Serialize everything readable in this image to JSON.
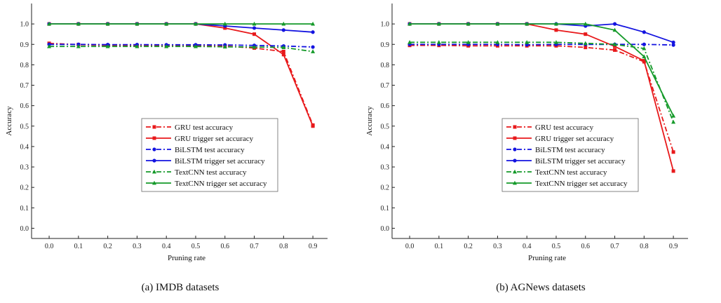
{
  "chart_data": [
    {
      "type": "line",
      "caption": "(a) IMDB datasets",
      "xlabel": "Pruning rate",
      "ylabel": "Accuracy",
      "x": [
        0.0,
        0.1,
        0.2,
        0.3,
        0.4,
        0.5,
        0.6,
        0.7,
        0.8,
        0.9
      ],
      "x_tick_labels": [
        "0.0",
        "0.1",
        "0.2",
        "0.3",
        "0.4",
        "0.5",
        "0.6",
        "0.7",
        "0.8",
        "0.9"
      ],
      "y_tick_labels": [
        "0.0",
        "0.1",
        "0.2",
        "0.3",
        "0.4",
        "0.5",
        "0.6",
        "0.7",
        "0.8",
        "0.9",
        "1.0"
      ],
      "xlim": [
        -0.06,
        0.95
      ],
      "ylim": [
        -0.05,
        1.1
      ],
      "legend_position": "center-right",
      "series": [
        {
          "name": "GRU test accuracy",
          "color": "#e8191b",
          "dash": true,
          "marker": "square",
          "values": [
            0.905,
            0.899,
            0.895,
            0.893,
            0.893,
            0.893,
            0.892,
            0.882,
            0.865,
            0.505
          ]
        },
        {
          "name": "GRU trigger set accuracy",
          "color": "#e8191b",
          "dash": false,
          "marker": "square",
          "values": [
            1.0,
            1.0,
            1.0,
            1.0,
            1.0,
            1.0,
            0.98,
            0.95,
            0.85,
            0.5
          ]
        },
        {
          "name": "BiLSTM test accuracy",
          "color": "#1414e0",
          "dash": true,
          "marker": "circle",
          "values": [
            0.9,
            0.9,
            0.899,
            0.899,
            0.898,
            0.898,
            0.897,
            0.895,
            0.892,
            0.887
          ]
        },
        {
          "name": "BiLSTM trigger set accuracy",
          "color": "#1414e0",
          "dash": false,
          "marker": "circle",
          "values": [
            1.0,
            1.0,
            1.0,
            1.0,
            1.0,
            1.0,
            0.99,
            0.98,
            0.97,
            0.96
          ]
        },
        {
          "name": "TextCNN test accuracy",
          "color": "#159a2a",
          "dash": true,
          "marker": "triangle",
          "values": [
            0.89,
            0.89,
            0.89,
            0.89,
            0.89,
            0.89,
            0.888,
            0.887,
            0.885,
            0.865
          ]
        },
        {
          "name": "TextCNN trigger set accuracy",
          "color": "#159a2a",
          "dash": false,
          "marker": "triangle",
          "values": [
            1.0,
            1.0,
            1.0,
            1.0,
            1.0,
            1.0,
            1.0,
            1.0,
            1.0,
            1.0
          ]
        }
      ]
    },
    {
      "type": "line",
      "caption": "(b) AGNews datasets",
      "xlabel": "Pruning rate",
      "ylabel": "Accuracy",
      "x": [
        0.0,
        0.1,
        0.2,
        0.3,
        0.4,
        0.5,
        0.6,
        0.7,
        0.8,
        0.9
      ],
      "x_tick_labels": [
        "0.0",
        "0.1",
        "0.2",
        "0.3",
        "0.4",
        "0.5",
        "0.6",
        "0.7",
        "0.8",
        "0.9"
      ],
      "y_tick_labels": [
        "0.0",
        "0.1",
        "0.2",
        "0.3",
        "0.4",
        "0.5",
        "0.6",
        "0.7",
        "0.8",
        "0.9",
        "1.0"
      ],
      "xlim": [
        -0.06,
        0.95
      ],
      "ylim": [
        -0.05,
        1.1
      ],
      "legend_position": "center-right",
      "series": [
        {
          "name": "GRU test accuracy",
          "color": "#e8191b",
          "dash": true,
          "marker": "square",
          "values": [
            0.895,
            0.895,
            0.893,
            0.893,
            0.893,
            0.893,
            0.885,
            0.872,
            0.815,
            0.373
          ]
        },
        {
          "name": "GRU trigger set accuracy",
          "color": "#e8191b",
          "dash": false,
          "marker": "square",
          "values": [
            1.0,
            1.0,
            1.0,
            1.0,
            1.0,
            0.97,
            0.95,
            0.89,
            0.82,
            0.28
          ]
        },
        {
          "name": "BiLSTM test accuracy",
          "color": "#1414e0",
          "dash": true,
          "marker": "circle",
          "values": [
            0.9,
            0.9,
            0.9,
            0.9,
            0.898,
            0.9,
            0.9,
            0.9,
            0.9,
            0.897
          ]
        },
        {
          "name": "BiLSTM trigger set accuracy",
          "color": "#1414e0",
          "dash": false,
          "marker": "circle",
          "values": [
            1.0,
            1.0,
            1.0,
            1.0,
            1.0,
            1.0,
            0.99,
            1.0,
            0.96,
            0.91
          ]
        },
        {
          "name": "TextCNN test accuracy",
          "color": "#159a2a",
          "dash": true,
          "marker": "triangle",
          "values": [
            0.91,
            0.91,
            0.91,
            0.91,
            0.91,
            0.91,
            0.905,
            0.9,
            0.88,
            0.52
          ]
        },
        {
          "name": "TextCNN trigger set accuracy",
          "color": "#159a2a",
          "dash": false,
          "marker": "triangle",
          "values": [
            1.0,
            1.0,
            1.0,
            1.0,
            1.0,
            1.0,
            1.0,
            0.97,
            0.84,
            0.55
          ]
        }
      ]
    }
  ]
}
